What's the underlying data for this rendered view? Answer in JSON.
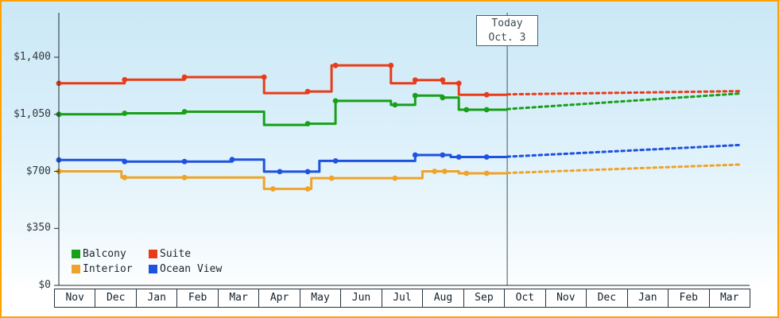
{
  "chart_data": {
    "type": "line",
    "title": "",
    "xlabel": "",
    "ylabel": "",
    "unit": "USD",
    "ylim": [
      0,
      1675
    ],
    "grid": false,
    "legend_position": "bottom-left",
    "y_ticks": [
      {
        "value": 0,
        "label": "$0"
      },
      {
        "value": 350,
        "label": "$350"
      },
      {
        "value": 700,
        "label": "$700"
      },
      {
        "value": 1050,
        "label": "$1,050"
      },
      {
        "value": 1400,
        "label": "$1,400"
      }
    ],
    "x_months": [
      "Nov",
      "Dec",
      "Jan",
      "Feb",
      "Mar",
      "Apr",
      "May",
      "Jun",
      "Jul",
      "Aug",
      "Sep",
      "Oct",
      "Nov",
      "Dec",
      "Jan",
      "Feb",
      "Mar"
    ],
    "today": {
      "x_month_index": 11.1,
      "label": [
        "Today",
        "Oct. 3"
      ]
    },
    "series": [
      {
        "name": "Balcony",
        "color": "#18a018",
        "solid": [
          [
            0,
            1050
          ],
          [
            1.63,
            1050
          ],
          [
            1.63,
            1056
          ],
          [
            3.11,
            1056
          ],
          [
            3.11,
            1066
          ],
          [
            5.08,
            1066
          ],
          [
            5.08,
            985
          ],
          [
            6.16,
            985
          ],
          [
            6.16,
            992
          ],
          [
            6.85,
            992
          ],
          [
            6.85,
            1132
          ],
          [
            8.22,
            1132
          ],
          [
            8.22,
            1108
          ],
          [
            8.82,
            1108
          ],
          [
            8.82,
            1165
          ],
          [
            9.5,
            1165
          ],
          [
            9.5,
            1152
          ],
          [
            9.9,
            1152
          ],
          [
            9.9,
            1078
          ],
          [
            11.1,
            1078
          ]
        ],
        "dots": [
          [
            0,
            1050
          ],
          [
            1.63,
            1056
          ],
          [
            3.11,
            1066
          ],
          [
            6.16,
            992
          ],
          [
            6.85,
            1132
          ],
          [
            8.32,
            1108
          ],
          [
            8.82,
            1165
          ],
          [
            9.5,
            1152
          ],
          [
            10.09,
            1078
          ],
          [
            10.59,
            1078
          ]
        ],
        "forecast": [
          [
            11.1,
            1082
          ],
          [
            16.9,
            1178
          ]
        ]
      },
      {
        "name": "Suite",
        "color": "#e83c18",
        "solid": [
          [
            0,
            1240
          ],
          [
            1.63,
            1240
          ],
          [
            1.63,
            1262
          ],
          [
            3.11,
            1262
          ],
          [
            3.11,
            1278
          ],
          [
            5.08,
            1278
          ],
          [
            5.08,
            1180
          ],
          [
            6.16,
            1180
          ],
          [
            6.16,
            1190
          ],
          [
            6.75,
            1190
          ],
          [
            6.75,
            1350
          ],
          [
            8.22,
            1350
          ],
          [
            8.22,
            1240
          ],
          [
            8.82,
            1240
          ],
          [
            8.82,
            1260
          ],
          [
            9.5,
            1260
          ],
          [
            9.5,
            1240
          ],
          [
            9.9,
            1240
          ],
          [
            9.9,
            1170
          ],
          [
            11.1,
            1170
          ]
        ],
        "dots": [
          [
            0,
            1240
          ],
          [
            1.63,
            1262
          ],
          [
            3.11,
            1278
          ],
          [
            5.08,
            1278
          ],
          [
            6.16,
            1190
          ],
          [
            6.85,
            1350
          ],
          [
            8.22,
            1350
          ],
          [
            8.82,
            1260
          ],
          [
            9.5,
            1260
          ],
          [
            9.9,
            1240
          ],
          [
            10.59,
            1170
          ]
        ],
        "forecast": [
          [
            11.1,
            1172
          ],
          [
            16.9,
            1192
          ]
        ]
      },
      {
        "name": "Interior",
        "color": "#efa32a",
        "solid": [
          [
            0,
            700
          ],
          [
            1.55,
            700
          ],
          [
            1.55,
            662
          ],
          [
            5.08,
            662
          ],
          [
            5.08,
            592
          ],
          [
            6.25,
            592
          ],
          [
            6.25,
            658
          ],
          [
            9.0,
            658
          ],
          [
            9.0,
            700
          ],
          [
            9.9,
            700
          ],
          [
            9.9,
            688
          ],
          [
            11.1,
            688
          ]
        ],
        "dots": [
          [
            0,
            700
          ],
          [
            1.63,
            662
          ],
          [
            3.11,
            662
          ],
          [
            5.3,
            592
          ],
          [
            6.16,
            592
          ],
          [
            6.75,
            658
          ],
          [
            8.32,
            658
          ],
          [
            9.3,
            700
          ],
          [
            9.55,
            700
          ],
          [
            10.09,
            688
          ],
          [
            10.59,
            688
          ]
        ],
        "forecast": [
          [
            11.1,
            690
          ],
          [
            16.9,
            742
          ]
        ]
      },
      {
        "name": "Ocean View",
        "color": "#1e52e0",
        "solid": [
          [
            0,
            770
          ],
          [
            1.63,
            770
          ],
          [
            1.63,
            760
          ],
          [
            4.29,
            760
          ],
          [
            4.29,
            772
          ],
          [
            5.08,
            772
          ],
          [
            5.08,
            698
          ],
          [
            6.45,
            698
          ],
          [
            6.45,
            764
          ],
          [
            8.82,
            764
          ],
          [
            8.82,
            800
          ],
          [
            9.7,
            800
          ],
          [
            9.7,
            788
          ],
          [
            11.1,
            788
          ]
        ],
        "dots": [
          [
            0,
            770
          ],
          [
            1.63,
            760
          ],
          [
            3.11,
            760
          ],
          [
            4.29,
            772
          ],
          [
            5.47,
            698
          ],
          [
            6.16,
            698
          ],
          [
            6.85,
            764
          ],
          [
            8.82,
            800
          ],
          [
            9.5,
            800
          ],
          [
            9.9,
            788
          ],
          [
            10.59,
            788
          ]
        ],
        "forecast": [
          [
            11.1,
            790
          ],
          [
            16.9,
            862
          ]
        ]
      }
    ]
  }
}
